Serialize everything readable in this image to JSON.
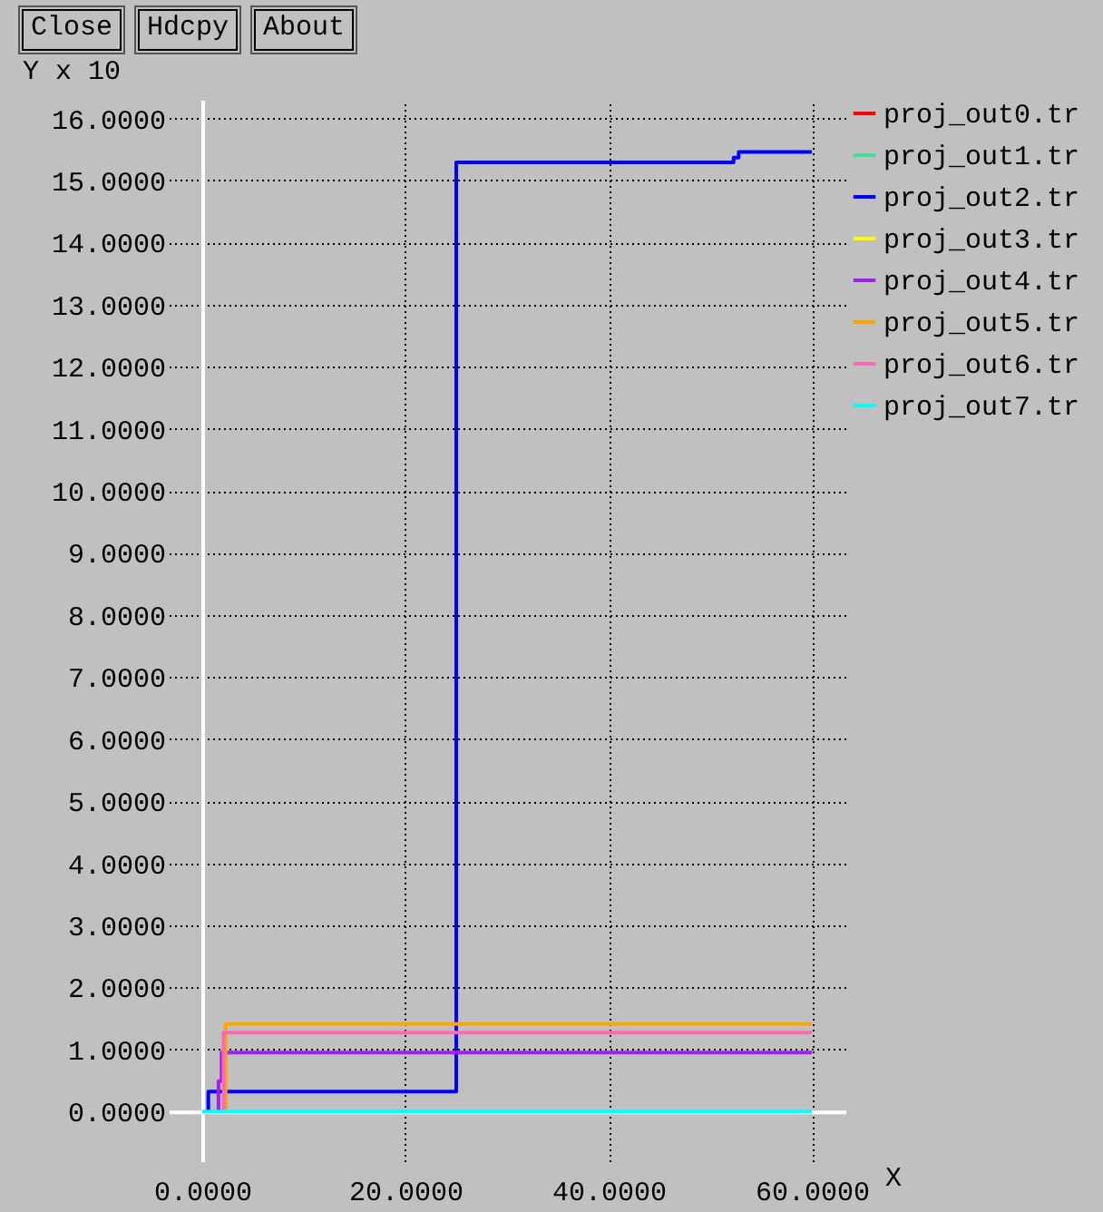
{
  "chart_data": {
    "type": "step",
    "ylabel": "Y x 10",
    "xlabel": "X",
    "annotations": [
      "Close",
      "Hdcpy",
      "About"
    ],
    "xlim": [
      -3.3,
      63.3
    ],
    "ylim": [
      -0.8,
      16.3
    ],
    "xticks": [
      {
        "value": 0,
        "label": "0.0000"
      },
      {
        "value": 20,
        "label": "20.0000"
      },
      {
        "value": 40,
        "label": "40.0000"
      },
      {
        "value": 60,
        "label": "60.0000"
      }
    ],
    "yticks": [
      {
        "value": 0,
        "label": "0.0000"
      },
      {
        "value": 1,
        "label": "1.0000"
      },
      {
        "value": 2,
        "label": "2.0000"
      },
      {
        "value": 3,
        "label": "3.0000"
      },
      {
        "value": 4,
        "label": "4.0000"
      },
      {
        "value": 5,
        "label": "5.0000"
      },
      {
        "value": 6,
        "label": "6.0000"
      },
      {
        "value": 7,
        "label": "7.0000"
      },
      {
        "value": 8,
        "label": "8.0000"
      },
      {
        "value": 9,
        "label": "9.0000"
      },
      {
        "value": 10,
        "label": "10.0000"
      },
      {
        "value": 11,
        "label": "11.0000"
      },
      {
        "value": 12,
        "label": "12.0000"
      },
      {
        "value": 13,
        "label": "13.0000"
      },
      {
        "value": 14,
        "label": "14.0000"
      },
      {
        "value": 15,
        "label": "15.0000"
      },
      {
        "value": 16,
        "label": "16.0000"
      }
    ],
    "grid": true,
    "legend": "top right",
    "series": [
      {
        "name": "proj_out0.tr",
        "color": "#ff0000",
        "values": [
          null
        ]
      },
      {
        "name": "proj_out1.tr",
        "color": "#40e090",
        "values": [
          null
        ]
      },
      {
        "name": "proj_out2.tr",
        "color": "#0000ff",
        "x": [
          0.6,
          0.6,
          25,
          52.3,
          52.8,
          60
        ],
        "values": [
          0,
          0.32,
          15.29,
          15.37,
          15.46,
          15.46
        ]
      },
      {
        "name": "proj_out3.tr",
        "color": "#ffff00",
        "values": [
          null
        ]
      },
      {
        "name": "proj_out4.tr",
        "color": "#a020f0",
        "x": [
          1.6,
          1.6,
          1.9,
          60
        ],
        "values": [
          0,
          0.49,
          0.95,
          0.95
        ]
      },
      {
        "name": "proj_out5.tr",
        "color": "#ffa500",
        "x": [
          2.3,
          2.3,
          60
        ],
        "values": [
          0,
          1.41,
          1.41
        ]
      },
      {
        "name": "proj_out6.tr",
        "color": "#ff69b4",
        "x": [
          2.1,
          2.1,
          60
        ],
        "values": [
          0,
          1.27,
          1.27
        ]
      },
      {
        "name": "proj_out7.tr",
        "color": "#00ffff",
        "x": [
          0,
          60
        ],
        "values": [
          0,
          0
        ]
      }
    ]
  }
}
